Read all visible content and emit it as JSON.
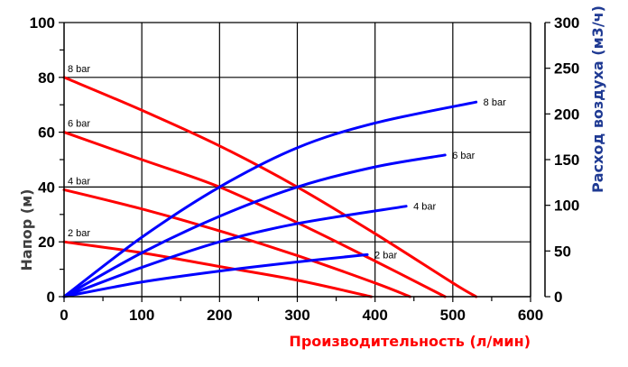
{
  "chart_data": {
    "type": "line",
    "title": "",
    "xlabel": "Производительность (л/мин)",
    "ylabel": "Напор (м)",
    "y2label": "Расход воздуха (м3/ч)",
    "xlim": [
      0,
      600
    ],
    "ylim": [
      0,
      100
    ],
    "y2lim": [
      0,
      300
    ],
    "x_ticks": [
      "0",
      "100",
      "200",
      "300",
      "400",
      "500",
      "600"
    ],
    "y_ticks": [
      "0",
      "20",
      "40",
      "60",
      "80",
      "100"
    ],
    "y2_ticks": [
      "0",
      "50",
      "100",
      "150",
      "200",
      "250",
      "300"
    ],
    "grid": true,
    "colors": {
      "head": "#ff0000",
      "air": "#0000ff",
      "xlabel": "#ff0000",
      "ylabel": "#3f3f3f",
      "y2label": "#1f3a93"
    },
    "series": [
      {
        "name": "8 bar",
        "kind": "head",
        "axis": "left",
        "x": [
          0,
          100,
          200,
          300,
          400,
          500,
          530
        ],
        "y": [
          80,
          68,
          55,
          40,
          23,
          5,
          0
        ]
      },
      {
        "name": "6 bar",
        "kind": "head",
        "axis": "left",
        "x": [
          0,
          100,
          200,
          300,
          400,
          490
        ],
        "y": [
          60,
          50,
          40,
          27,
          13,
          0
        ]
      },
      {
        "name": "4 bar",
        "kind": "head",
        "axis": "left",
        "x": [
          0,
          100,
          200,
          300,
          400,
          445
        ],
        "y": [
          39,
          32,
          24,
          15,
          5,
          0
        ]
      },
      {
        "name": "2 bar",
        "kind": "head",
        "axis": "left",
        "x": [
          0,
          100,
          200,
          300,
          395
        ],
        "y": [
          20,
          16,
          11,
          6,
          0
        ]
      },
      {
        "name": "8 bar",
        "kind": "air",
        "axis": "right",
        "x": [
          0,
          100,
          200,
          300,
          400,
          530
        ],
        "y": [
          0,
          65,
          120,
          163,
          190,
          213
        ]
      },
      {
        "name": "6 bar",
        "kind": "air",
        "axis": "right",
        "x": [
          0,
          100,
          200,
          300,
          400,
          490
        ],
        "y": [
          0,
          48,
          88,
          120,
          142,
          155
        ]
      },
      {
        "name": "4 bar",
        "kind": "air",
        "axis": "right",
        "x": [
          0,
          100,
          200,
          300,
          440
        ],
        "y": [
          0,
          32,
          60,
          80,
          99
        ]
      },
      {
        "name": "2 bar",
        "kind": "air",
        "axis": "right",
        "x": [
          0,
          100,
          200,
          300,
          390
        ],
        "y": [
          0,
          16,
          28,
          38,
          46
        ]
      }
    ]
  }
}
